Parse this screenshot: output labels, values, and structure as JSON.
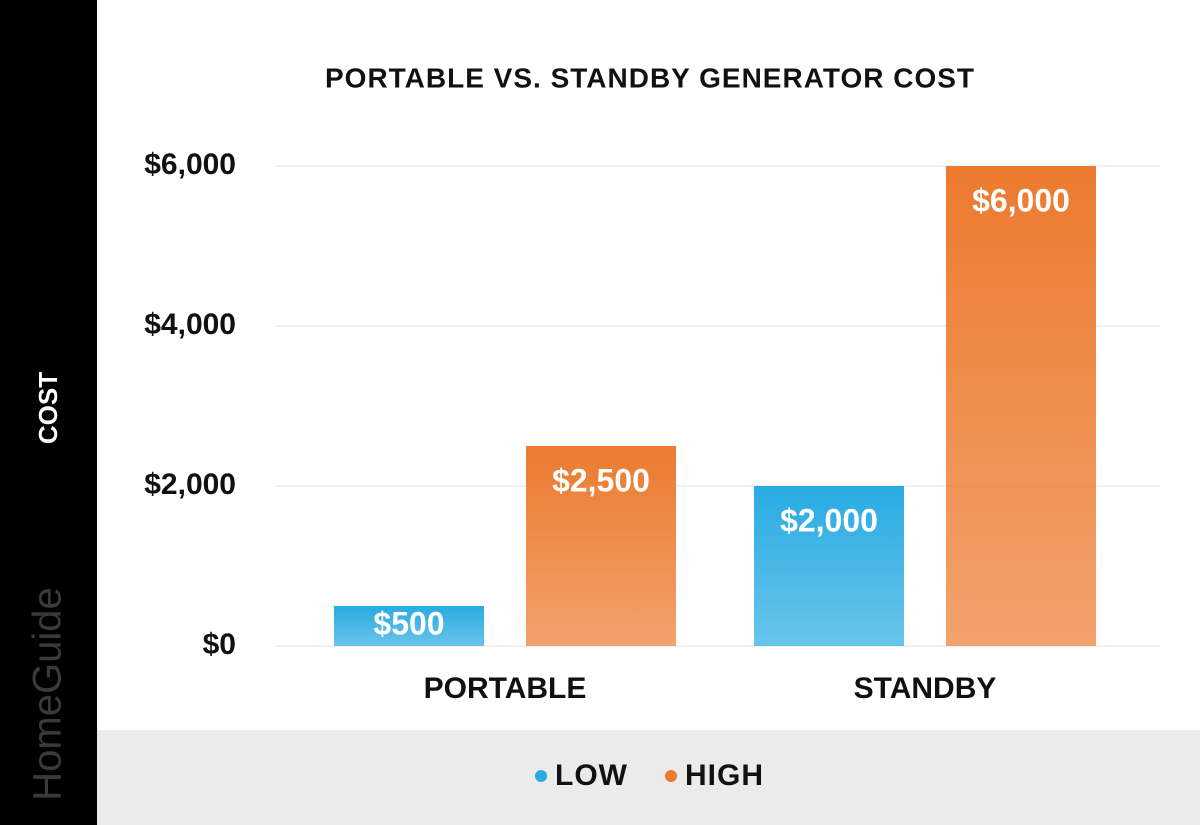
{
  "chart_data": {
    "type": "bar",
    "title": "PORTABLE VS. STANDBY GENERATOR COST",
    "y_label": "COST",
    "brand": "HomeGuide",
    "categories": [
      "PORTABLE",
      "STANDBY"
    ],
    "series": [
      {
        "name": "LOW",
        "color": "#29abe2",
        "values": [
          500,
          2000
        ],
        "value_labels": [
          "$500",
          "$2,000"
        ]
      },
      {
        "name": "HIGH",
        "color": "#ec7a2f",
        "values": [
          2500,
          6000
        ],
        "value_labels": [
          "$2,500",
          "$6,000"
        ]
      }
    ],
    "ylim": [
      0,
      6000
    ],
    "yticks": [
      {
        "value": 0,
        "label": "$0"
      },
      {
        "value": 2000,
        "label": "$2,000"
      },
      {
        "value": 4000,
        "label": "$4,000"
      },
      {
        "value": 6000,
        "label": "$6,000"
      }
    ],
    "grid": true,
    "legend": "bottom"
  }
}
